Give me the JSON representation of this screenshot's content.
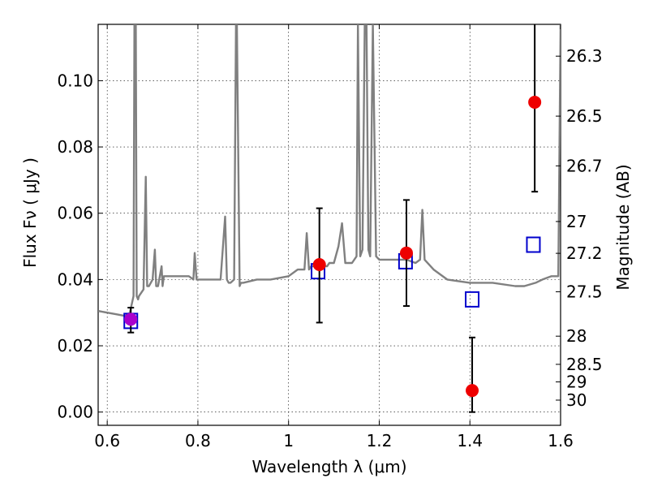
{
  "chart_data": {
    "type": "scatter",
    "xlabel": "Wavelength  λ (μm)",
    "ylabel": "Flux  Fν  ( μJy )",
    "ylabel_right": "Magnitude (AB)",
    "xlim": [
      0.58,
      1.6
    ],
    "ylim": [
      -0.004,
      0.117
    ],
    "grid": true,
    "x_ticks": [
      0.6,
      0.8,
      1.0,
      1.2,
      1.4,
      1.6
    ],
    "x_tick_labels": [
      "0.6",
      "0.8",
      "1",
      "1.2",
      "1.4",
      "1.6"
    ],
    "y_ticks": [
      0.0,
      0.02,
      0.04,
      0.06,
      0.08,
      0.1
    ],
    "y_tick_labels": [
      "0.00",
      "0.02",
      "0.04",
      "0.06",
      "0.08",
      "0.10"
    ],
    "mag_ticks": [
      {
        "label": "26.3",
        "flux": 0.1074
      },
      {
        "label": "26.5",
        "flux": 0.0893
      },
      {
        "label": "26.7",
        "flux": 0.0743
      },
      {
        "label": "27",
        "flux": 0.0575
      },
      {
        "label": "27.2",
        "flux": 0.0479
      },
      {
        "label": "27.5",
        "flux": 0.0363
      },
      {
        "label": "28",
        "flux": 0.0229
      },
      {
        "label": "28.5",
        "flux": 0.0144
      },
      {
        "label": "29",
        "flux": 0.0091
      },
      {
        "label": "30",
        "flux": 0.0036
      }
    ],
    "series": [
      {
        "name": "Model spectrum",
        "kind": "line",
        "color": "#808080",
        "x": [
          0.58,
          0.6,
          0.62,
          0.64,
          0.65,
          0.658,
          0.66,
          0.663,
          0.665,
          0.668,
          0.67,
          0.68,
          0.685,
          0.688,
          0.692,
          0.7,
          0.705,
          0.708,
          0.712,
          0.72,
          0.722,
          0.725,
          0.73,
          0.75,
          0.78,
          0.79,
          0.793,
          0.797,
          0.8,
          0.82,
          0.85,
          0.86,
          0.864,
          0.868,
          0.872,
          0.88,
          0.884,
          0.886,
          0.892,
          0.895,
          0.9,
          0.93,
          0.96,
          1.0,
          1.02,
          1.035,
          1.04,
          1.045,
          1.05,
          1.07,
          1.085,
          1.09,
          1.1,
          1.11,
          1.118,
          1.125,
          1.14,
          1.15,
          1.153,
          1.158,
          1.163,
          1.168,
          1.172,
          1.176,
          1.18,
          1.186,
          1.193,
          1.2,
          1.24,
          1.26,
          1.28,
          1.29,
          1.295,
          1.3,
          1.32,
          1.35,
          1.4,
          1.45,
          1.5,
          1.52,
          1.545,
          1.56,
          1.58,
          1.595,
          1.6
        ],
        "y": [
          0.0305,
          0.03,
          0.0295,
          0.029,
          0.03,
          0.035,
          0.117,
          0.117,
          0.035,
          0.034,
          0.035,
          0.037,
          0.071,
          0.038,
          0.038,
          0.04,
          0.049,
          0.038,
          0.038,
          0.044,
          0.038,
          0.041,
          0.041,
          0.041,
          0.041,
          0.04,
          0.048,
          0.04,
          0.04,
          0.04,
          0.04,
          0.059,
          0.04,
          0.039,
          0.039,
          0.04,
          0.117,
          0.117,
          0.038,
          0.039,
          0.039,
          0.04,
          0.04,
          0.041,
          0.043,
          0.043,
          0.054,
          0.043,
          0.044,
          0.044,
          0.044,
          0.045,
          0.045,
          0.05,
          0.057,
          0.045,
          0.045,
          0.047,
          0.117,
          0.047,
          0.049,
          0.117,
          0.117,
          0.049,
          0.047,
          0.117,
          0.047,
          0.046,
          0.046,
          0.046,
          0.045,
          0.046,
          0.061,
          0.046,
          0.043,
          0.04,
          0.039,
          0.039,
          0.038,
          0.038,
          0.039,
          0.04,
          0.041,
          0.041,
          0.117
        ]
      },
      {
        "name": "Model photometry",
        "kind": "markers",
        "marker": "open-square",
        "color": "#0000cc",
        "x": [
          0.652,
          1.065,
          1.258,
          1.405,
          1.54
        ],
        "y": [
          0.0275,
          0.0425,
          0.0455,
          0.034,
          0.0505
        ]
      },
      {
        "name": "Observed photometry",
        "kind": "markers-errorbars",
        "marker": "filled-circle",
        "color": "#ee0000",
        "x": [
          1.068,
          1.26,
          1.405,
          1.543
        ],
        "y": [
          0.0445,
          0.048,
          0.0065,
          0.0935
        ],
        "yerr_low": [
          0.0175,
          0.016,
          0.0065,
          0.027
        ],
        "yerr_high": [
          0.017,
          0.016,
          0.016,
          0.028
        ]
      },
      {
        "name": "Detected point",
        "kind": "markers-errorbars",
        "marker": "filled-circle",
        "color": "#aa00cc",
        "x": [
          0.652
        ],
        "y": [
          0.028
        ],
        "yerr_low": [
          0.004
        ],
        "yerr_high": [
          0.0035
        ]
      }
    ]
  }
}
